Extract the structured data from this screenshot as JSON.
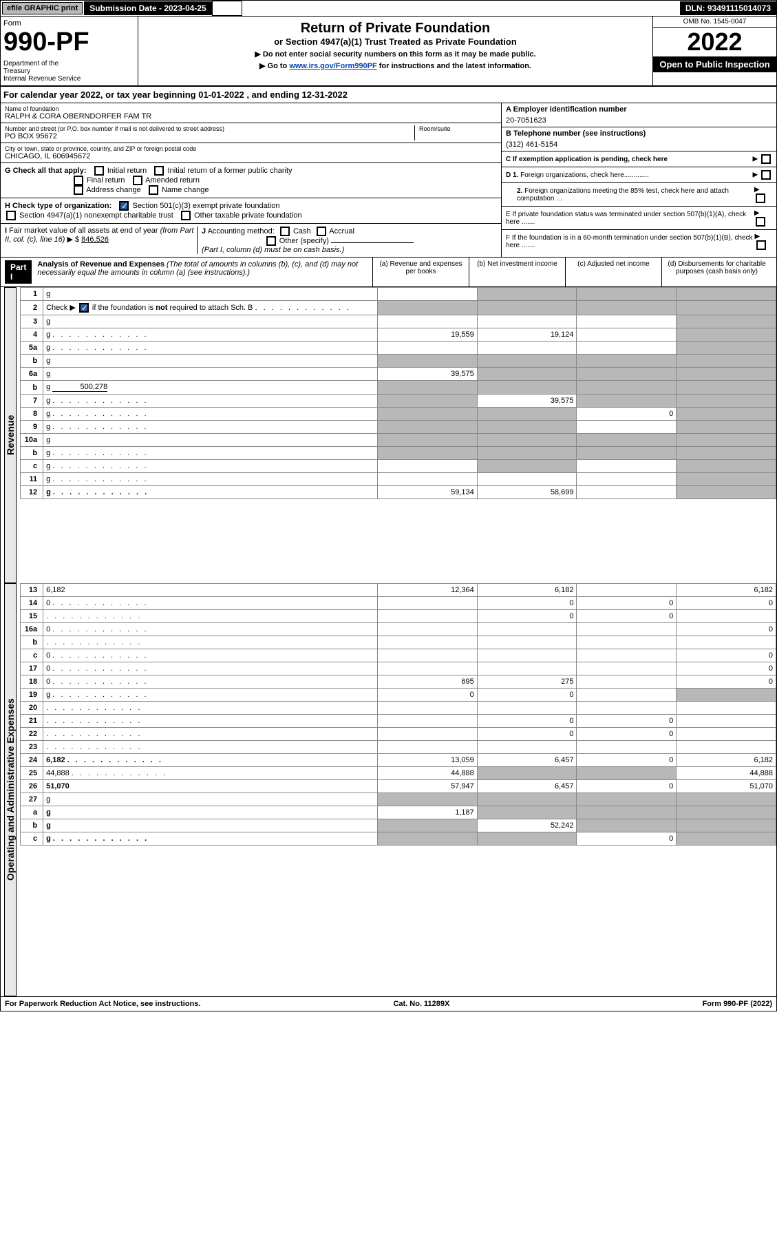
{
  "topbar": {
    "efile": "efile GRAPHIC print",
    "subdate_label": "Submission Date - 2023-04-25",
    "dln": "DLN: 93491115014073"
  },
  "header": {
    "form_label": "Form",
    "form_num": "990-PF",
    "dept": "Department of the Treasury\nInternal Revenue Service",
    "title": "Return of Private Foundation",
    "subtitle": "or Section 4947(a)(1) Trust Treated as Private Foundation",
    "note1": "▶ Do not enter social security numbers on this form as it may be made public.",
    "note2_pre": "▶ Go to ",
    "note2_link": "www.irs.gov/Form990PF",
    "note2_post": " for instructions and the latest information.",
    "omb": "OMB No. 1545-0047",
    "year": "2022",
    "inspect": "Open to Public Inspection"
  },
  "calyear": "For calendar year 2022, or tax year beginning 01-01-2022                             , and ending 12-31-2022",
  "entity": {
    "name_label": "Name of foundation",
    "name": "RALPH & CORA OBERNDORFER FAM TR",
    "addr_label": "Number and street (or P.O. box number if mail is not delivered to street address)",
    "addr": "PO BOX 95672",
    "room_label": "Room/suite",
    "city_label": "City or town, state or province, country, and ZIP or foreign postal code",
    "city": "CHICAGO, IL  606945672",
    "ein_label": "A Employer identification number",
    "ein": "20-7051623",
    "phone_label": "B Telephone number (see instructions)",
    "phone": "(312) 461-5154",
    "c_label": "C If exemption application is pending, check here",
    "d1": "D 1. Foreign organizations, check here.............",
    "d2": "2. Foreign organizations meeting the 85% test, check here and attach computation ...",
    "e_label": "E  If private foundation status was terminated under section 507(b)(1)(A), check here .......",
    "f_label": "F  If the foundation is in a 60-month termination under section 507(b)(1)(B), check here .......",
    "g_label": "G Check all that apply:",
    "g_opts": [
      "Initial return",
      "Initial return of a former public charity",
      "Final return",
      "Amended return",
      "Address change",
      "Name change"
    ],
    "h_label": "H Check type of organization:",
    "h_opts": [
      "Section 501(c)(3) exempt private foundation",
      "Section 4947(a)(1) nonexempt charitable trust",
      "Other taxable private foundation"
    ],
    "i_label": "I Fair market value of all assets at end of year (from Part II, col. (c), line 16) ▶ $",
    "i_val": "846,526",
    "j_label": "J Accounting method:",
    "j_opts": [
      "Cash",
      "Accrual",
      "Other (specify)"
    ],
    "j_note": "(Part I, column (d) must be on cash basis.)"
  },
  "part1": {
    "label": "Part I",
    "title": "Analysis of Revenue and Expenses",
    "note": "(The total of amounts in columns (b), (c), and (d) may not necessarily equal the amounts in column (a) (see instructions).)",
    "col_a": "(a)   Revenue and expenses per books",
    "col_b": "(b)   Net investment income",
    "col_c": "(c)   Adjusted net income",
    "col_d": "(d)   Disbursements for charitable purposes (cash basis only)"
  },
  "vert": {
    "revenue": "Revenue",
    "expenses": "Operating and Administrative Expenses"
  },
  "rows": [
    {
      "n": "1",
      "d": "g",
      "a": "",
      "b": "g",
      "c": "g"
    },
    {
      "n": "2",
      "d": "g",
      "dots": true,
      "a": "g",
      "b": "g",
      "c": "g",
      "checkimg": true
    },
    {
      "n": "3",
      "d": "g",
      "a": "",
      "b": "",
      "c": ""
    },
    {
      "n": "4",
      "d": "g",
      "dots": true,
      "a": "19,559",
      "b": "19,124",
      "c": ""
    },
    {
      "n": "5a",
      "d": "g",
      "dots": true,
      "a": "",
      "b": "",
      "c": ""
    },
    {
      "n": "b",
      "d": "g",
      "underline": true,
      "a": "g",
      "b": "g",
      "c": "g"
    },
    {
      "n": "6a",
      "d": "g",
      "a": "39,575",
      "b": "g",
      "c": "g"
    },
    {
      "n": "b",
      "d": "g",
      "inline_val": "500,278",
      "a": "g",
      "b": "g",
      "c": "g"
    },
    {
      "n": "7",
      "d": "g",
      "dots": true,
      "a": "g",
      "b": "39,575",
      "c": "g"
    },
    {
      "n": "8",
      "d": "g",
      "dots": true,
      "a": "g",
      "b": "g",
      "c": "0"
    },
    {
      "n": "9",
      "d": "g",
      "dots": true,
      "a": "g",
      "b": "g",
      "c": ""
    },
    {
      "n": "10a",
      "d": "g",
      "underline": true,
      "a": "g",
      "b": "g",
      "c": "g"
    },
    {
      "n": "b",
      "d": "g",
      "dots": true,
      "underline": true,
      "a": "g",
      "b": "g",
      "c": "g"
    },
    {
      "n": "c",
      "d": "g",
      "dots": true,
      "a": "",
      "b": "g",
      "c": ""
    },
    {
      "n": "11",
      "d": "g",
      "dots": true,
      "a": "",
      "b": "",
      "c": ""
    },
    {
      "n": "12",
      "d": "g",
      "dots": true,
      "bold": true,
      "a": "59,134",
      "b": "58,699",
      "c": ""
    },
    {
      "n": "13",
      "d": "6,182",
      "a": "12,364",
      "b": "6,182",
      "c": ""
    },
    {
      "n": "14",
      "d": "0",
      "dots": true,
      "a": "",
      "b": "0",
      "c": "0"
    },
    {
      "n": "15",
      "d": "",
      "dots": true,
      "a": "",
      "b": "0",
      "c": "0"
    },
    {
      "n": "16a",
      "d": "0",
      "dots": true,
      "a": "",
      "b": "",
      "c": ""
    },
    {
      "n": "b",
      "d": "",
      "dots": true,
      "a": "",
      "b": "",
      "c": ""
    },
    {
      "n": "c",
      "d": "0",
      "dots": true,
      "a": "",
      "b": "",
      "c": ""
    },
    {
      "n": "17",
      "d": "0",
      "dots": true,
      "a": "",
      "b": "",
      "c": ""
    },
    {
      "n": "18",
      "d": "0",
      "dots": true,
      "a": "695",
      "b": "275",
      "c": ""
    },
    {
      "n": "19",
      "d": "g",
      "dots": true,
      "a": "0",
      "b": "0",
      "c": ""
    },
    {
      "n": "20",
      "d": "",
      "dots": true,
      "a": "",
      "b": "",
      "c": ""
    },
    {
      "n": "21",
      "d": "",
      "dots": true,
      "a": "",
      "b": "0",
      "c": "0"
    },
    {
      "n": "22",
      "d": "",
      "dots": true,
      "a": "",
      "b": "0",
      "c": "0"
    },
    {
      "n": "23",
      "d": "",
      "dots": true,
      "a": "",
      "b": "",
      "c": ""
    },
    {
      "n": "24",
      "d": "6,182",
      "dots": true,
      "bold": true,
      "a": "13,059",
      "b": "6,457",
      "c": "0"
    },
    {
      "n": "25",
      "d": "44,888",
      "dots": true,
      "a": "44,888",
      "b": "g",
      "c": "g"
    },
    {
      "n": "26",
      "d": "51,070",
      "bold": true,
      "a": "57,947",
      "b": "6,457",
      "c": "0"
    },
    {
      "n": "27",
      "d": "g",
      "a": "g",
      "b": "g",
      "c": "g"
    },
    {
      "n": "a",
      "d": "g",
      "bold": true,
      "a": "1,187",
      "b": "g",
      "c": "g"
    },
    {
      "n": "b",
      "d": "g",
      "bold": true,
      "a": "g",
      "b": "52,242",
      "c": "g"
    },
    {
      "n": "c",
      "d": "g",
      "dots": true,
      "bold": true,
      "a": "g",
      "b": "g",
      "c": "0"
    }
  ],
  "footer": {
    "left": "For Paperwork Reduction Act Notice, see instructions.",
    "mid": "Cat. No. 11289X",
    "right": "Form 990-PF (2022)"
  },
  "colors": {
    "grey": "#b8b8b8",
    "link": "#0645ad",
    "checked": "#2c5aa0"
  }
}
